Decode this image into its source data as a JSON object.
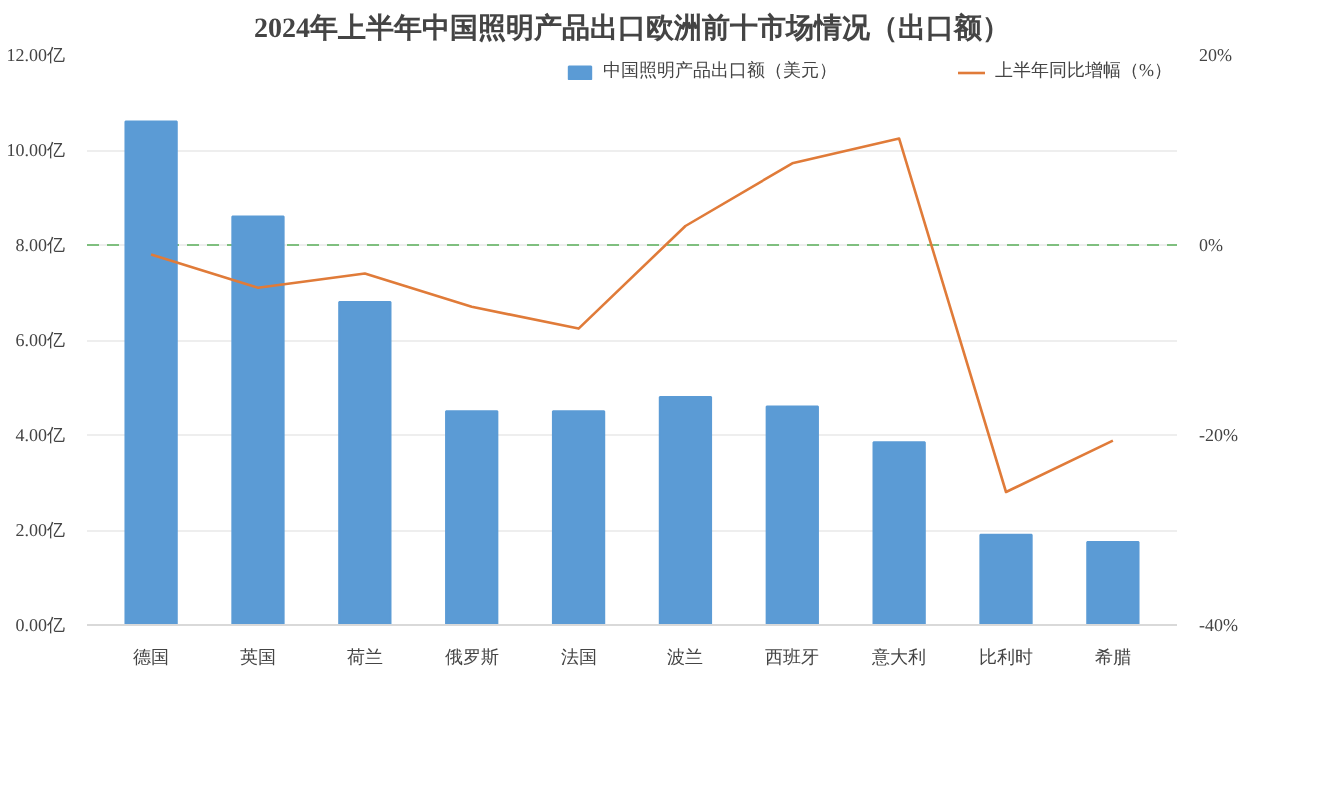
{
  "chart_data": {
    "type": "bar",
    "title": "2024年上半年中国照明产品出口欧洲前十市场情况（出口额）",
    "categories": [
      "德国",
      "英国",
      "荷兰",
      "俄罗斯",
      "法国",
      "波兰",
      "西班牙",
      "意大利",
      "比利时",
      "希腊"
    ],
    "series": [
      {
        "name": "中国照明产品出口额（美元）",
        "color": "#5b9bd5",
        "values": [
          10.6,
          8.6,
          6.8,
          4.5,
          4.5,
          4.8,
          4.6,
          3.85,
          1.9,
          1.75
        ]
      },
      {
        "name": "上半年同比增幅（%）",
        "type": "line",
        "axis": "y2",
        "color": "#e07b39",
        "values": [
          -1,
          -4.5,
          -3,
          -6.5,
          -8.8,
          2,
          8.6,
          11.2,
          -26,
          -20.6
        ]
      }
    ],
    "ylim": [
      0,
      12
    ],
    "yticks": [
      {
        "value": 0,
        "label": "0.00亿"
      },
      {
        "value": 2,
        "label": "2.00亿"
      },
      {
        "value": 4,
        "label": "4.00亿"
      },
      {
        "value": 6,
        "label": "6.00亿"
      },
      {
        "value": 8,
        "label": "8.00亿"
      },
      {
        "value": 10,
        "label": "10.00亿"
      },
      {
        "value": 12,
        "label": "12.00亿"
      }
    ],
    "y2lim": [
      -40,
      20
    ],
    "y2ticks": [
      {
        "value": -40,
        "label": "-40%"
      },
      {
        "value": -20,
        "label": "-20%"
      },
      {
        "value": 0,
        "label": "0%"
      },
      {
        "value": 20,
        "label": "20%"
      }
    ],
    "ref_lines": [
      {
        "axis": "y2",
        "value": 0,
        "color": "#7fbf7f",
        "line_style": "dashed"
      }
    ],
    "grid": "y",
    "legend": "top right"
  }
}
